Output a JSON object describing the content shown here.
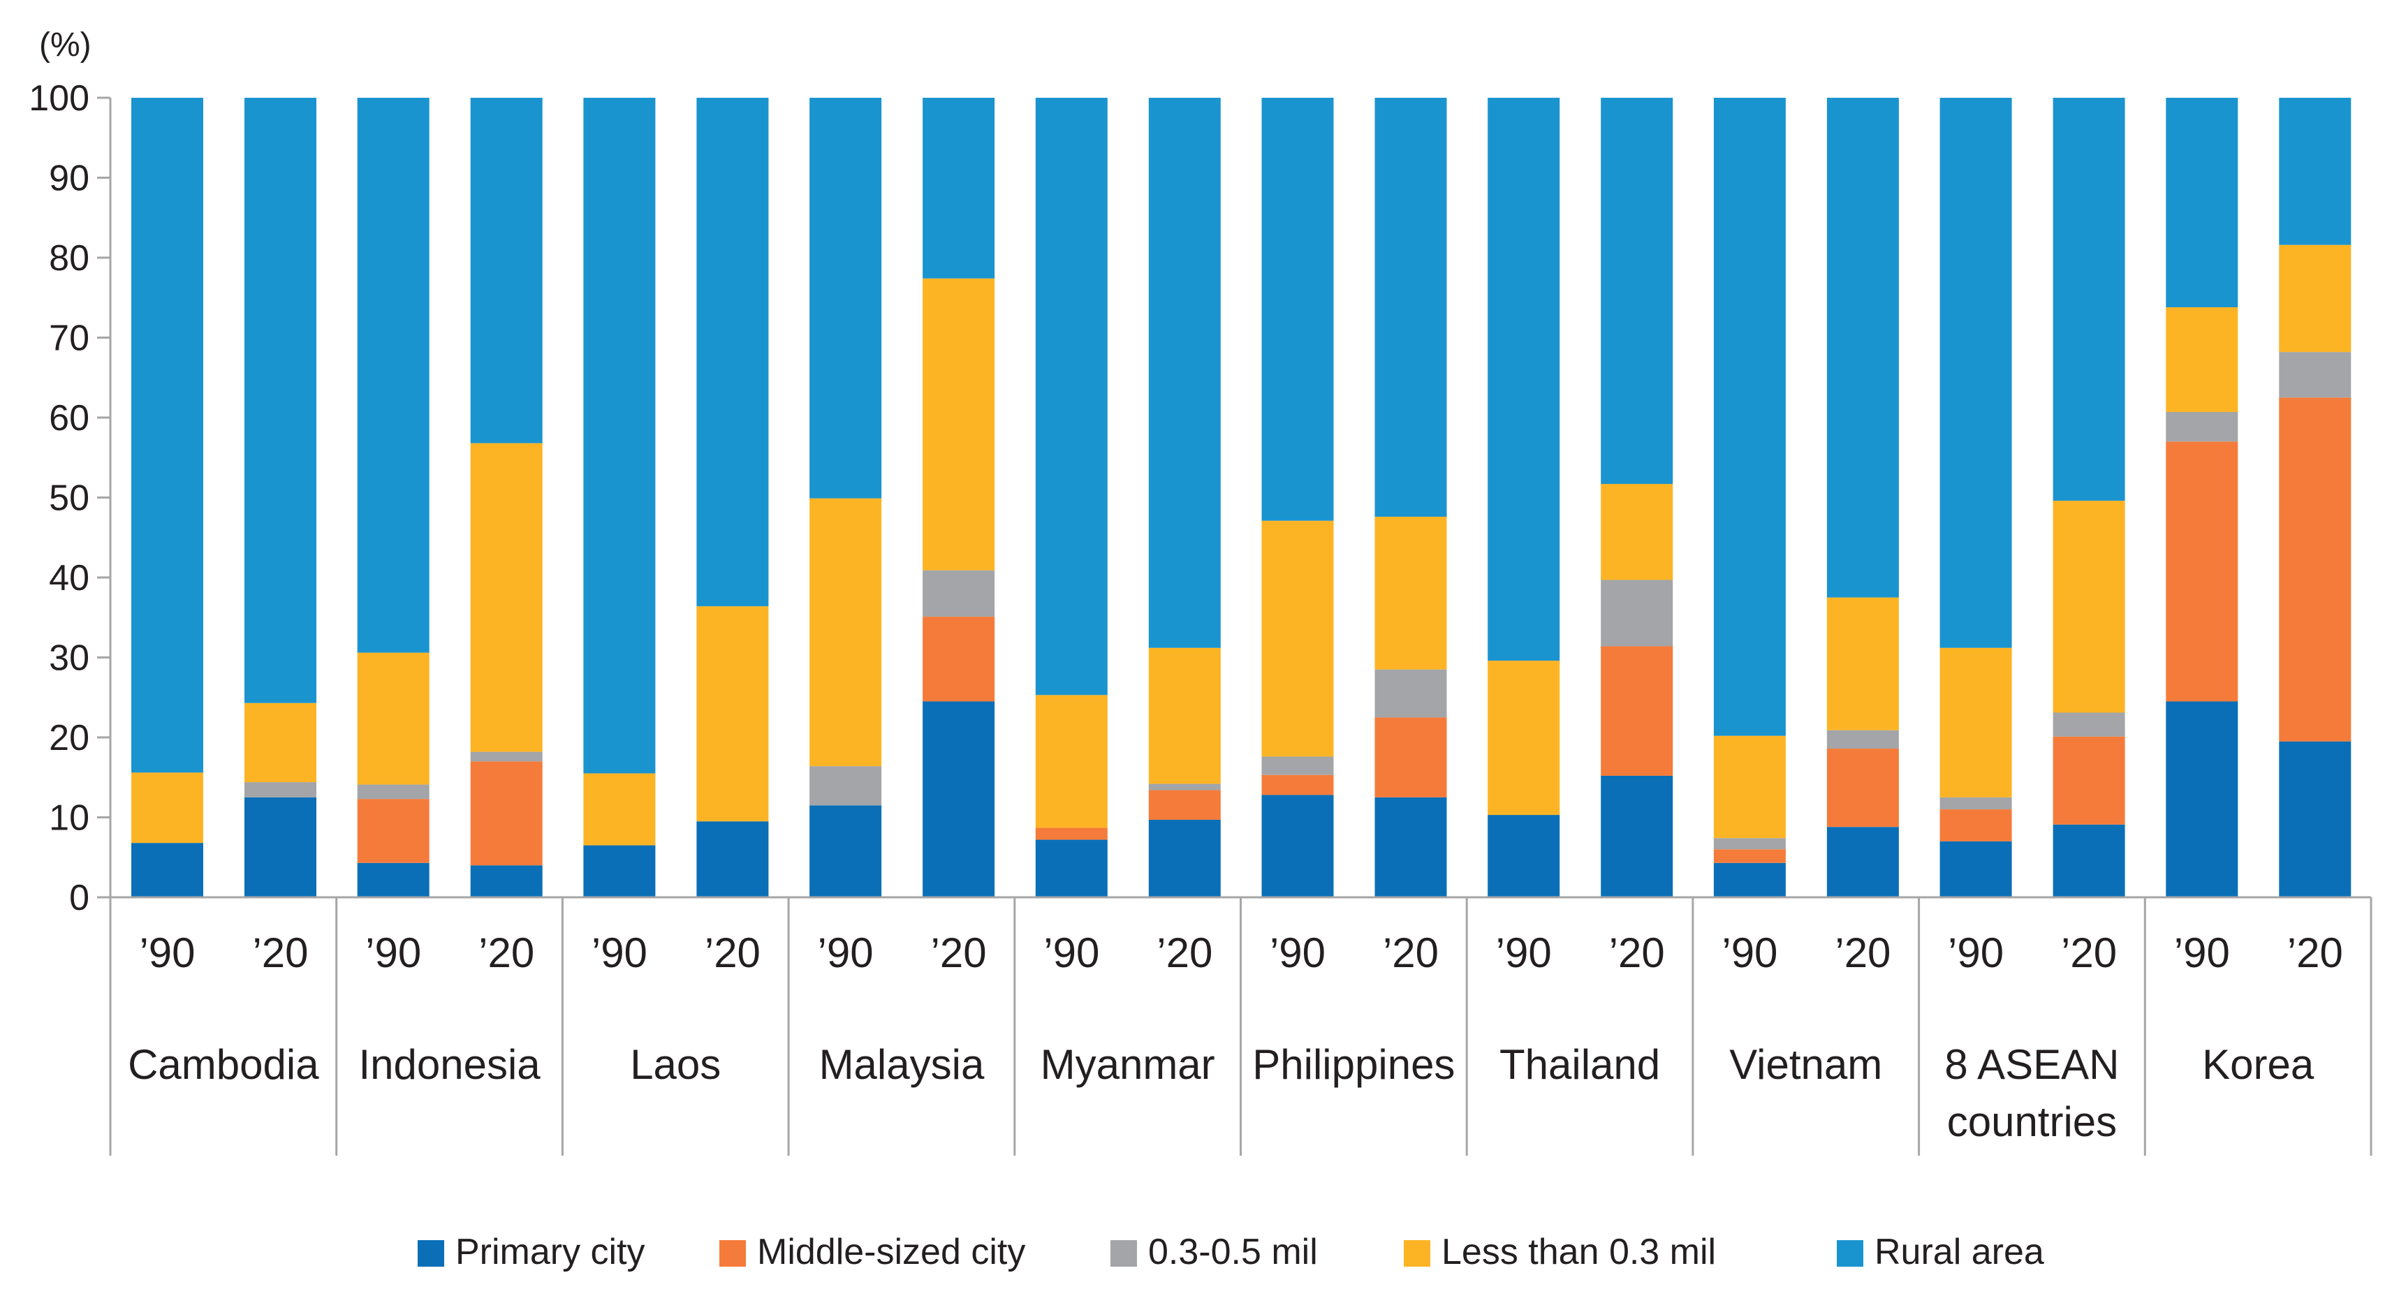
{
  "chart_data": {
    "type": "bar",
    "stacked": true,
    "title": "",
    "ylabel": "(%)",
    "xlabel": "",
    "ylim": [
      0,
      100
    ],
    "yticks": [
      0,
      10,
      20,
      30,
      40,
      50,
      60,
      70,
      80,
      90,
      100
    ],
    "grid": false,
    "legend_position": "bottom",
    "colors": {
      "primary_city": "#0a6fb7",
      "middle_sized_city": "#f57b3a",
      "mid_small": "#a3a5a8",
      "small": "#fdb424",
      "rural": "#1a94cf",
      "axis": "#a6a6a6",
      "text": "#231f20"
    },
    "groups": [
      {
        "name": "Cambodia",
        "periods": [
          "’90",
          "’20"
        ]
      },
      {
        "name": "Indonesia",
        "periods": [
          "’90",
          "’20"
        ]
      },
      {
        "name": "Laos",
        "periods": [
          "’90",
          "’20"
        ]
      },
      {
        "name": "Malaysia",
        "periods": [
          "’90",
          "’20"
        ]
      },
      {
        "name": "Myanmar",
        "periods": [
          "’90",
          "’20"
        ]
      },
      {
        "name": "Philippines",
        "periods": [
          "’90",
          "’20"
        ]
      },
      {
        "name": "Thailand",
        "periods": [
          "’90",
          "’20"
        ]
      },
      {
        "name": "Vietnam",
        "periods": [
          "’90",
          "’20"
        ]
      },
      {
        "name": "8 ASEAN\ncountries",
        "periods": [
          "’90",
          "’20"
        ]
      },
      {
        "name": "Korea",
        "periods": [
          "’90",
          "’20"
        ]
      }
    ],
    "series": [
      {
        "name": "Primary city",
        "key": "primary_city",
        "values": [
          6.8,
          12.5,
          4.3,
          4.0,
          6.5,
          9.5,
          11.5,
          24.5,
          7.2,
          9.7,
          12.8,
          12.5,
          10.3,
          15.2,
          4.3,
          8.8,
          7.0,
          9.1,
          24.5,
          19.5
        ]
      },
      {
        "name": "Middle-sized city",
        "key": "middle_sized_city",
        "values": [
          0,
          0,
          8.0,
          13.0,
          0,
          0,
          0,
          10.6,
          1.5,
          3.7,
          2.5,
          10.0,
          0,
          16.2,
          1.7,
          9.8,
          4.0,
          11.0,
          32.5,
          43.0
        ]
      },
      {
        "name": "0.3-0.5 mil",
        "key": "mid_small",
        "values": [
          0,
          1.9,
          1.8,
          1.2,
          0,
          0,
          4.9,
          5.8,
          0,
          0.8,
          2.3,
          6.0,
          0,
          8.3,
          1.4,
          2.3,
          1.5,
          3.0,
          3.7,
          5.7
        ]
      },
      {
        "name": "Less than 0.3 mil",
        "key": "small",
        "values": [
          8.8,
          9.9,
          16.5,
          38.6,
          9.0,
          26.9,
          33.5,
          36.5,
          16.6,
          17.0,
          29.5,
          19.1,
          19.3,
          12.0,
          12.8,
          16.6,
          18.7,
          26.5,
          13.1,
          13.4
        ]
      },
      {
        "name": "Rural area",
        "key": "rural",
        "values": [
          84.4,
          75.7,
          69.4,
          43.2,
          84.5,
          63.6,
          50.1,
          22.6,
          74.7,
          68.8,
          52.9,
          52.4,
          70.4,
          48.3,
          79.8,
          62.5,
          68.8,
          50.4,
          26.2,
          18.4
        ]
      }
    ]
  }
}
